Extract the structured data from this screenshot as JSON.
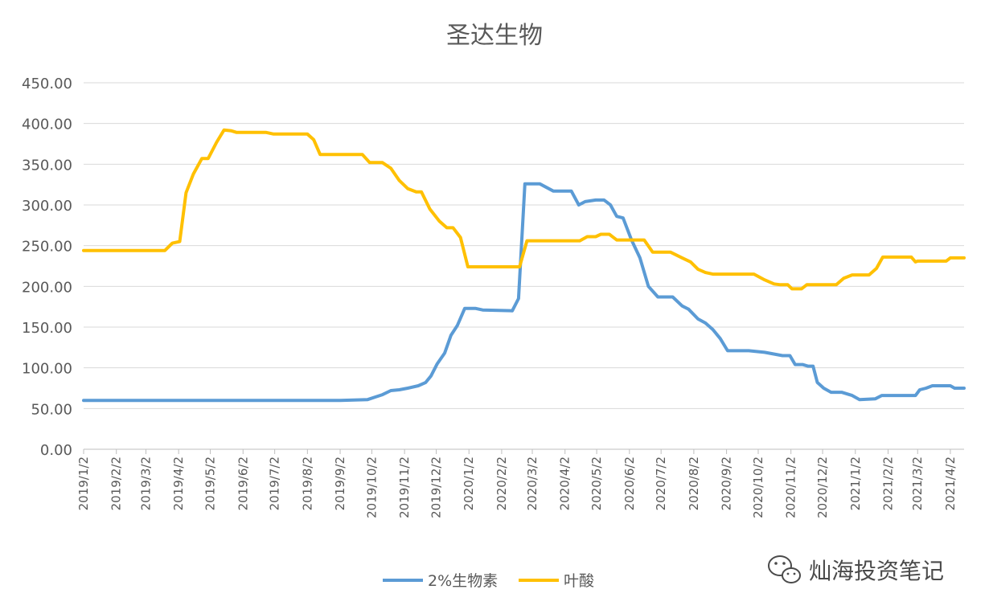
{
  "chart_data": {
    "type": "line",
    "title": "圣达生物",
    "xlabel": "",
    "ylabel": "",
    "ylim": [
      0,
      450
    ],
    "y_ticks": [
      "0.00",
      "50.00",
      "100.00",
      "150.00",
      "200.00",
      "250.00",
      "300.00",
      "350.00",
      "400.00",
      "450.00"
    ],
    "x_range": [
      "2019-01-02",
      "2021-04-15"
    ],
    "x_ticks": [
      "2019/1/2",
      "2019/2/2",
      "2019/3/2",
      "2019/4/2",
      "2019/5/2",
      "2019/6/2",
      "2019/7/2",
      "2019/8/2",
      "2019/9/2",
      "2019/10/2",
      "2019/11/2",
      "2019/12/2",
      "2020/1/2",
      "2020/2/2",
      "2020/3/2",
      "2020/4/2",
      "2020/5/2",
      "2020/6/2",
      "2020/7/2",
      "2020/8/2",
      "2020/9/2",
      "2020/10/2",
      "2020/11/2",
      "2020/12/2",
      "2021/1/2",
      "2021/2/2",
      "2021/3/2",
      "2021/4/2"
    ],
    "grid": true,
    "legend_position": "bottom",
    "series": [
      {
        "name": "2%生物素",
        "color": "#5b9bd5",
        "points": [
          [
            "2019-01-02",
            60
          ],
          [
            "2019-06-10",
            60
          ],
          [
            "2019-09-02",
            60
          ],
          [
            "2019-09-28",
            61
          ],
          [
            "2019-10-05",
            64
          ],
          [
            "2019-10-12",
            67
          ],
          [
            "2019-10-20",
            72
          ],
          [
            "2019-10-28",
            73
          ],
          [
            "2019-11-05",
            75
          ],
          [
            "2019-11-15",
            78
          ],
          [
            "2019-11-22",
            82
          ],
          [
            "2019-11-27",
            90
          ],
          [
            "2019-12-03",
            105
          ],
          [
            "2019-12-10",
            118
          ],
          [
            "2019-12-16",
            140
          ],
          [
            "2019-12-22",
            152
          ],
          [
            "2019-12-29",
            173
          ],
          [
            "2020-01-08",
            173
          ],
          [
            "2020-01-15",
            171
          ],
          [
            "2020-02-12",
            170
          ],
          [
            "2020-02-18",
            185
          ],
          [
            "2020-02-24",
            326
          ],
          [
            "2020-03-09",
            326
          ],
          [
            "2020-03-22",
            317
          ],
          [
            "2020-04-08",
            317
          ],
          [
            "2020-04-15",
            300
          ],
          [
            "2020-04-21",
            304
          ],
          [
            "2020-05-01",
            306
          ],
          [
            "2020-05-09",
            306
          ],
          [
            "2020-05-15",
            300
          ],
          [
            "2020-05-21",
            286
          ],
          [
            "2020-05-27",
            284
          ],
          [
            "2020-06-04",
            257
          ],
          [
            "2020-06-12",
            235
          ],
          [
            "2020-06-20",
            200
          ],
          [
            "2020-06-29",
            187
          ],
          [
            "2020-07-13",
            187
          ],
          [
            "2020-07-22",
            176
          ],
          [
            "2020-07-28",
            172
          ],
          [
            "2020-08-06",
            160
          ],
          [
            "2020-08-13",
            155
          ],
          [
            "2020-08-20",
            147
          ],
          [
            "2020-08-27",
            136
          ],
          [
            "2020-09-03",
            121
          ],
          [
            "2020-09-23",
            121
          ],
          [
            "2020-10-08",
            119
          ],
          [
            "2020-10-25",
            115
          ],
          [
            "2020-11-01",
            115
          ],
          [
            "2020-11-06",
            104
          ],
          [
            "2020-11-13",
            104
          ],
          [
            "2020-11-18",
            102
          ],
          [
            "2020-11-23",
            102
          ],
          [
            "2020-11-27",
            82
          ],
          [
            "2020-12-03",
            75
          ],
          [
            "2020-12-10",
            70
          ],
          [
            "2020-12-20",
            70
          ],
          [
            "2020-12-30",
            66
          ],
          [
            "2021-01-06",
            61
          ],
          [
            "2021-01-21",
            62
          ],
          [
            "2021-01-27",
            66
          ],
          [
            "2021-02-22",
            66
          ],
          [
            "2021-02-28",
            66
          ],
          [
            "2021-03-04",
            73
          ],
          [
            "2021-03-10",
            75
          ],
          [
            "2021-03-16",
            78
          ],
          [
            "2021-04-02",
            78
          ],
          [
            "2021-04-06",
            75
          ],
          [
            "2021-04-15",
            75
          ]
        ]
      },
      {
        "name": "叶酸",
        "color": "#ffc000",
        "points": [
          [
            "2019-01-02",
            244
          ],
          [
            "2019-03-20",
            244
          ],
          [
            "2019-03-27",
            253
          ],
          [
            "2019-04-03",
            255
          ],
          [
            "2019-04-09",
            315
          ],
          [
            "2019-04-16",
            338
          ],
          [
            "2019-04-24",
            357
          ],
          [
            "2019-04-30",
            357
          ],
          [
            "2019-05-08",
            377
          ],
          [
            "2019-05-15",
            392
          ],
          [
            "2019-05-22",
            391
          ],
          [
            "2019-05-27",
            389
          ],
          [
            "2019-06-24",
            389
          ],
          [
            "2019-07-01",
            387
          ],
          [
            "2019-08-02",
            387
          ],
          [
            "2019-08-08",
            380
          ],
          [
            "2019-08-14",
            362
          ],
          [
            "2019-09-15",
            362
          ],
          [
            "2019-09-23",
            362
          ],
          [
            "2019-09-30",
            352
          ],
          [
            "2019-10-12",
            352
          ],
          [
            "2019-10-20",
            345
          ],
          [
            "2019-10-28",
            330
          ],
          [
            "2019-11-05",
            320
          ],
          [
            "2019-11-13",
            316
          ],
          [
            "2019-11-18",
            316
          ],
          [
            "2019-11-26",
            295
          ],
          [
            "2019-12-05",
            280
          ],
          [
            "2019-12-12",
            272
          ],
          [
            "2019-12-18",
            272
          ],
          [
            "2019-12-25",
            260
          ],
          [
            "2020-01-01",
            224
          ],
          [
            "2020-02-19",
            224
          ],
          [
            "2020-02-26",
            256
          ],
          [
            "2020-04-16",
            256
          ],
          [
            "2020-04-23",
            261
          ],
          [
            "2020-05-01",
            261
          ],
          [
            "2020-05-06",
            264
          ],
          [
            "2020-05-14",
            264
          ],
          [
            "2020-05-21",
            257
          ],
          [
            "2020-06-16",
            257
          ],
          [
            "2020-06-24",
            242
          ],
          [
            "2020-07-11",
            242
          ],
          [
            "2020-07-22",
            235
          ],
          [
            "2020-07-30",
            230
          ],
          [
            "2020-08-06",
            221
          ],
          [
            "2020-08-13",
            217
          ],
          [
            "2020-08-20",
            215
          ],
          [
            "2020-09-28",
            215
          ],
          [
            "2020-10-08",
            208
          ],
          [
            "2020-10-17",
            203
          ],
          [
            "2020-10-23",
            202
          ],
          [
            "2020-10-30",
            202
          ],
          [
            "2020-11-03",
            197
          ],
          [
            "2020-11-12",
            197
          ],
          [
            "2020-11-17",
            202
          ],
          [
            "2020-12-15",
            202
          ],
          [
            "2020-12-22",
            210
          ],
          [
            "2020-12-30",
            214
          ],
          [
            "2021-01-15",
            214
          ],
          [
            "2021-01-22",
            222
          ],
          [
            "2021-01-28",
            236
          ],
          [
            "2021-02-24",
            236
          ],
          [
            "2021-02-28",
            230
          ],
          [
            "2021-03-02",
            231
          ],
          [
            "2021-03-29",
            231
          ],
          [
            "2021-04-02",
            235
          ],
          [
            "2021-04-15",
            235
          ]
        ]
      }
    ]
  },
  "watermark": {
    "text": "灿海投资笔记",
    "icon": "wechat-icon"
  }
}
